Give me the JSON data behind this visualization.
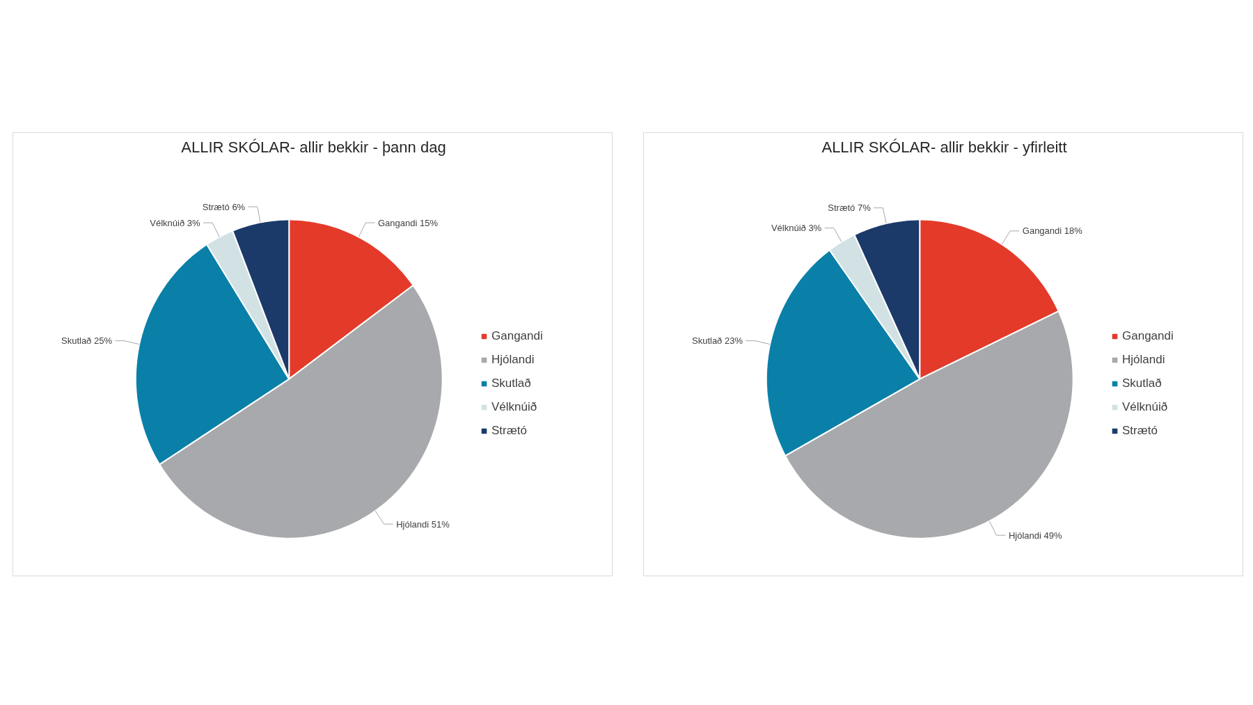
{
  "chart_data": [
    {
      "type": "pie",
      "title": "ALLIR SKÓLAR- allir bekkir - þann dag",
      "categories": [
        "Gangandi",
        "Hjólandi",
        "Skutlað",
        "Vélknúið",
        "Strætó"
      ],
      "values": [
        15,
        51,
        25,
        3,
        6
      ],
      "colors": [
        "#e43a2a",
        "#a8a9ac",
        "#0a80a8",
        "#d2e1e4",
        "#1b3a69"
      ],
      "value_labels": [
        "Gangandi 15%",
        "Hjólandi 51%",
        "Skutlað 25%",
        "Vélknúið 3%",
        "Strætó 6%"
      ],
      "legend": "right"
    },
    {
      "type": "pie",
      "title": "ALLIR SKÓLAR- allir bekkir - yfirleitt",
      "categories": [
        "Gangandi",
        "Hjólandi",
        "Skutlað",
        "Vélknúið",
        "Strætó"
      ],
      "values": [
        18,
        49,
        23,
        3,
        7
      ],
      "colors": [
        "#e43a2a",
        "#a8a9ac",
        "#0a80a8",
        "#d2e1e4",
        "#1b3a69"
      ],
      "value_labels": [
        "Gangandi 18%",
        "Hjólandi 49%",
        "Skutlað 23%",
        "Vélknúið 3%",
        "Strætó 7%"
      ],
      "legend": "right"
    }
  ]
}
